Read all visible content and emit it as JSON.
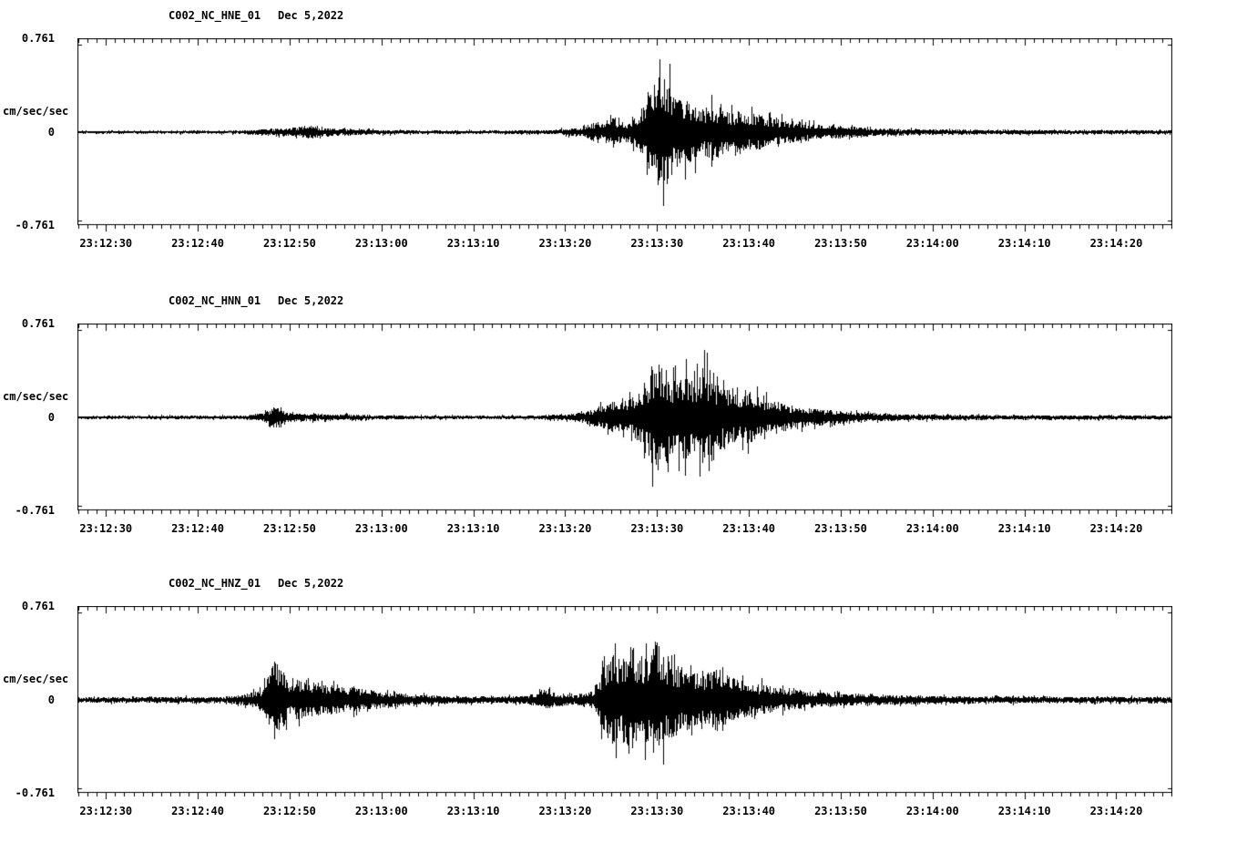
{
  "page": {
    "background": "#ffffff",
    "line_color": "#000000",
    "text_color": "#000000"
  },
  "chart_data": [
    {
      "type": "line",
      "title": "C002_NC_HNE_01",
      "date": "Dec 5,2022",
      "ylabel": "cm/sec/sec",
      "yticks": [
        "0.761",
        "0",
        "-0.761"
      ],
      "ylim": [
        -0.761,
        0.761
      ],
      "grid": "off",
      "legend": "none",
      "x_start_seconds": 0,
      "x_end_seconds": 119,
      "minor_tick_interval_seconds": 1,
      "x_tick_seconds": [
        3,
        13,
        23,
        33,
        43,
        53,
        63,
        73,
        83,
        93,
        103,
        113
      ],
      "x_tick_labels": [
        "23:12:30",
        "23:12:40",
        "23:12:50",
        "23:13:00",
        "23:13:10",
        "23:13:20",
        "23:13:30",
        "23:13:40",
        "23:13:50",
        "23:14:00",
        "23:14:10",
        "23:14:20"
      ],
      "seed": 101,
      "envelope": [
        [
          0,
          0.018
        ],
        [
          18,
          0.02
        ],
        [
          20,
          0.04
        ],
        [
          23,
          0.05
        ],
        [
          25.5,
          0.09
        ],
        [
          26.5,
          0.05
        ],
        [
          30,
          0.04
        ],
        [
          34,
          0.025
        ],
        [
          45,
          0.022
        ],
        [
          52,
          0.03
        ],
        [
          55,
          0.06
        ],
        [
          56,
          0.12
        ],
        [
          57,
          0.1
        ],
        [
          58,
          0.18
        ],
        [
          59,
          0.15
        ],
        [
          60,
          0.12
        ],
        [
          61,
          0.25
        ],
        [
          62,
          0.45
        ],
        [
          63,
          0.72
        ],
        [
          64,
          0.68
        ],
        [
          65,
          0.5
        ],
        [
          66,
          0.42
        ],
        [
          67,
          0.38
        ],
        [
          68,
          0.3
        ],
        [
          69,
          0.33
        ],
        [
          70,
          0.28
        ],
        [
          71,
          0.24
        ],
        [
          72,
          0.28
        ],
        [
          73,
          0.22
        ],
        [
          74,
          0.25
        ],
        [
          75,
          0.18
        ],
        [
          77,
          0.15
        ],
        [
          79,
          0.12
        ],
        [
          81,
          0.09
        ],
        [
          84,
          0.07
        ],
        [
          87,
          0.05
        ],
        [
          90,
          0.04
        ],
        [
          95,
          0.035
        ],
        [
          100,
          0.03
        ],
        [
          105,
          0.028
        ],
        [
          110,
          0.026
        ],
        [
          119,
          0.025
        ]
      ]
    },
    {
      "type": "line",
      "title": "C002_NC_HNN_01",
      "date": "Dec 5,2022",
      "ylabel": "cm/sec/sec",
      "yticks": [
        "0.761",
        "0",
        "-0.761"
      ],
      "ylim": [
        -0.761,
        0.761
      ],
      "grid": "off",
      "legend": "none",
      "x_start_seconds": 0,
      "x_end_seconds": 119,
      "minor_tick_interval_seconds": 1,
      "x_tick_seconds": [
        3,
        13,
        23,
        33,
        43,
        53,
        63,
        73,
        83,
        93,
        103,
        113
      ],
      "x_tick_labels": [
        "23:12:30",
        "23:12:40",
        "23:12:50",
        "23:13:00",
        "23:13:10",
        "23:13:20",
        "23:13:30",
        "23:13:40",
        "23:13:50",
        "23:14:00",
        "23:14:10",
        "23:14:20"
      ],
      "seed": 202,
      "envelope": [
        [
          0,
          0.018
        ],
        [
          18,
          0.025
        ],
        [
          20,
          0.05
        ],
        [
          21.5,
          0.14
        ],
        [
          22.5,
          0.06
        ],
        [
          25,
          0.05
        ],
        [
          28,
          0.04
        ],
        [
          32,
          0.03
        ],
        [
          40,
          0.022
        ],
        [
          50,
          0.025
        ],
        [
          54,
          0.05
        ],
        [
          56,
          0.1
        ],
        [
          57,
          0.15
        ],
        [
          58,
          0.2
        ],
        [
          59,
          0.18
        ],
        [
          60,
          0.22
        ],
        [
          61,
          0.3
        ],
        [
          62,
          0.5
        ],
        [
          63,
          0.73
        ],
        [
          64,
          0.6
        ],
        [
          65,
          0.45
        ],
        [
          66,
          0.55
        ],
        [
          67,
          0.45
        ],
        [
          68,
          0.62
        ],
        [
          69,
          0.5
        ],
        [
          70,
          0.4
        ],
        [
          71,
          0.35
        ],
        [
          72,
          0.3
        ],
        [
          73,
          0.33
        ],
        [
          74,
          0.28
        ],
        [
          75,
          0.22
        ],
        [
          77,
          0.17
        ],
        [
          79,
          0.13
        ],
        [
          81,
          0.1
        ],
        [
          84,
          0.07
        ],
        [
          87,
          0.05
        ],
        [
          90,
          0.04
        ],
        [
          95,
          0.035
        ],
        [
          100,
          0.03
        ],
        [
          110,
          0.028
        ],
        [
          119,
          0.026
        ]
      ]
    },
    {
      "type": "line",
      "title": "C002_NC_HNZ_01",
      "date": "Dec 5,2022",
      "ylabel": "cm/sec/sec",
      "yticks": [
        "0.761",
        "0",
        "-0.761"
      ],
      "ylim": [
        -0.761,
        0.761
      ],
      "grid": "off",
      "legend": "none",
      "x_start_seconds": 0,
      "x_end_seconds": 119,
      "minor_tick_interval_seconds": 1,
      "x_tick_seconds": [
        3,
        13,
        23,
        33,
        43,
        53,
        63,
        73,
        83,
        93,
        103,
        113
      ],
      "x_tick_labels": [
        "23:12:30",
        "23:12:40",
        "23:12:50",
        "23:13:00",
        "23:13:10",
        "23:13:20",
        "23:13:30",
        "23:13:40",
        "23:13:50",
        "23:14:00",
        "23:14:10",
        "23:14:20"
      ],
      "seed": 303,
      "envelope": [
        [
          0,
          0.035
        ],
        [
          16,
          0.04
        ],
        [
          18,
          0.07
        ],
        [
          20,
          0.12
        ],
        [
          21.5,
          0.55
        ],
        [
          22.5,
          0.3
        ],
        [
          23,
          0.2
        ],
        [
          24,
          0.25
        ],
        [
          25,
          0.2
        ],
        [
          26,
          0.22
        ],
        [
          27,
          0.18
        ],
        [
          28,
          0.2
        ],
        [
          29,
          0.15
        ],
        [
          30,
          0.17
        ],
        [
          31,
          0.13
        ],
        [
          32,
          0.12
        ],
        [
          34,
          0.09
        ],
        [
          36,
          0.07
        ],
        [
          38,
          0.06
        ],
        [
          40,
          0.05
        ],
        [
          44,
          0.045
        ],
        [
          48,
          0.05
        ],
        [
          50,
          0.08
        ],
        [
          51,
          0.14
        ],
        [
          52,
          0.08
        ],
        [
          54,
          0.06
        ],
        [
          56,
          0.12
        ],
        [
          57,
          0.35
        ],
        [
          58,
          0.6
        ],
        [
          59,
          0.5
        ],
        [
          60,
          0.68
        ],
        [
          61,
          0.55
        ],
        [
          62,
          0.6
        ],
        [
          63,
          0.72
        ],
        [
          64,
          0.5
        ],
        [
          65,
          0.45
        ],
        [
          66,
          0.4
        ],
        [
          67,
          0.35
        ],
        [
          68,
          0.3
        ],
        [
          69,
          0.35
        ],
        [
          70,
          0.42
        ],
        [
          71,
          0.3
        ],
        [
          72,
          0.25
        ],
        [
          74,
          0.2
        ],
        [
          76,
          0.15
        ],
        [
          78,
          0.12
        ],
        [
          80,
          0.1
        ],
        [
          83,
          0.08
        ],
        [
          86,
          0.07
        ],
        [
          90,
          0.06
        ],
        [
          95,
          0.05
        ],
        [
          100,
          0.045
        ],
        [
          110,
          0.04
        ],
        [
          119,
          0.04
        ]
      ]
    }
  ]
}
